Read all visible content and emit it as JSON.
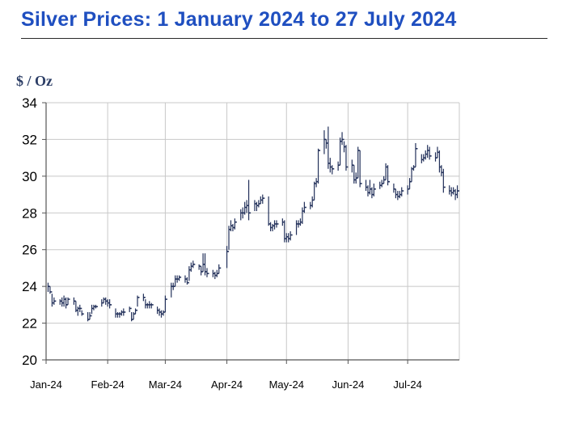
{
  "title": "Silver Prices: 1 January 2024 to 27 July 2024",
  "unit_label": "$ / Oz",
  "colors": {
    "title": "#1f4fc0",
    "bar": "#22305a",
    "grid": "#c8c8c8"
  },
  "chart_data": {
    "type": "ohlc",
    "title": "Silver Prices: 1 January 2024 to 27 July 2024",
    "ylabel": "$ / Oz",
    "xlabel": "",
    "ylim": [
      20,
      34
    ],
    "yticks": [
      20,
      22,
      24,
      26,
      28,
      30,
      32,
      34
    ],
    "xlim": [
      "2024-01-01",
      "2024-07-27"
    ],
    "xticks": [
      {
        "label": "Jan-24",
        "date": "2024-01-01"
      },
      {
        "label": "Feb-24",
        "date": "2024-02-01"
      },
      {
        "label": "Mar-24",
        "date": "2024-03-01"
      },
      {
        "label": "Apr-24",
        "date": "2024-04-01"
      },
      {
        "label": "May-24",
        "date": "2024-05-01"
      },
      {
        "label": "Jun-24",
        "date": "2024-06-01"
      },
      {
        "label": "Jul-24",
        "date": "2024-07-01"
      }
    ],
    "grid": true,
    "legend": "none",
    "fields": [
      "date",
      "high",
      "low",
      "close"
    ],
    "series": [
      {
        "values": [
          [
            "2024-01-02",
            24.2,
            23.7,
            24.0
          ],
          [
            "2024-01-03",
            24.0,
            23.6,
            23.7
          ],
          [
            "2024-01-04",
            23.6,
            22.9,
            23.1
          ],
          [
            "2024-01-05",
            23.4,
            23.0,
            23.2
          ],
          [
            "2024-01-08",
            23.3,
            23.0,
            23.2
          ],
          [
            "2024-01-09",
            23.4,
            22.9,
            23.1
          ],
          [
            "2024-01-10",
            23.5,
            22.9,
            23.3
          ],
          [
            "2024-01-11",
            23.4,
            22.8,
            23.0
          ],
          [
            "2024-01-12",
            23.4,
            23.0,
            23.3
          ],
          [
            "2024-01-15",
            23.4,
            23.0,
            23.2
          ],
          [
            "2024-01-16",
            23.2,
            22.6,
            22.7
          ],
          [
            "2024-01-17",
            22.9,
            22.4,
            22.8
          ],
          [
            "2024-01-18",
            23.0,
            22.6,
            22.8
          ],
          [
            "2024-01-19",
            22.7,
            22.4,
            22.5
          ],
          [
            "2024-01-22",
            22.6,
            22.1,
            22.2
          ],
          [
            "2024-01-23",
            22.6,
            22.2,
            22.4
          ],
          [
            "2024-01-24",
            23.0,
            22.5,
            22.8
          ],
          [
            "2024-01-25",
            23.0,
            22.7,
            22.9
          ],
          [
            "2024-01-26",
            23.0,
            22.8,
            22.9
          ],
          [
            "2024-01-29",
            23.3,
            22.9,
            23.1
          ],
          [
            "2024-01-30",
            23.4,
            23.1,
            23.3
          ],
          [
            "2024-01-31",
            23.4,
            23.0,
            23.2
          ],
          [
            "2024-02-01",
            23.3,
            22.9,
            23.1
          ],
          [
            "2024-02-02",
            23.3,
            22.8,
            23.0
          ],
          [
            "2024-02-05",
            22.8,
            22.3,
            22.5
          ],
          [
            "2024-02-06",
            22.6,
            22.3,
            22.5
          ],
          [
            "2024-02-07",
            22.6,
            22.3,
            22.5
          ],
          [
            "2024-02-08",
            22.7,
            22.4,
            22.6
          ],
          [
            "2024-02-09",
            22.8,
            22.4,
            22.6
          ],
          [
            "2024-02-12",
            22.9,
            22.6,
            22.8
          ],
          [
            "2024-02-13",
            22.6,
            22.1,
            22.2
          ],
          [
            "2024-02-14",
            22.6,
            22.2,
            22.5
          ],
          [
            "2024-02-15",
            22.8,
            22.5,
            22.7
          ],
          [
            "2024-02-16",
            23.5,
            22.9,
            23.4
          ],
          [
            "2024-02-19",
            23.6,
            23.2,
            23.4
          ],
          [
            "2024-02-20",
            23.3,
            22.8,
            23.0
          ],
          [
            "2024-02-21",
            23.1,
            22.8,
            23.0
          ],
          [
            "2024-02-22",
            23.2,
            22.8,
            23.0
          ],
          [
            "2024-02-23",
            23.1,
            22.8,
            23.0
          ],
          [
            "2024-02-26",
            22.9,
            22.5,
            22.7
          ],
          [
            "2024-02-27",
            22.8,
            22.4,
            22.6
          ],
          [
            "2024-02-28",
            22.7,
            22.3,
            22.5
          ],
          [
            "2024-02-29",
            22.7,
            22.4,
            22.6
          ],
          [
            "2024-03-01",
            23.5,
            22.6,
            23.3
          ],
          [
            "2024-03-04",
            24.2,
            23.4,
            24.0
          ],
          [
            "2024-03-05",
            24.2,
            23.8,
            24.0
          ],
          [
            "2024-03-06",
            24.6,
            24.0,
            24.4
          ],
          [
            "2024-03-07",
            24.6,
            24.2,
            24.4
          ],
          [
            "2024-03-08",
            24.6,
            24.3,
            24.5
          ],
          [
            "2024-03-11",
            24.6,
            24.2,
            24.4
          ],
          [
            "2024-03-12",
            24.5,
            24.1,
            24.2
          ],
          [
            "2024-03-13",
            25.1,
            24.3,
            24.9
          ],
          [
            "2024-03-14",
            25.3,
            24.8,
            25.1
          ],
          [
            "2024-03-15",
            25.4,
            25.0,
            25.2
          ],
          [
            "2024-03-18",
            25.2,
            24.9,
            25.1
          ],
          [
            "2024-03-19",
            25.1,
            24.6,
            24.8
          ],
          [
            "2024-03-20",
            25.8,
            24.8,
            25.2
          ],
          [
            "2024-03-21",
            25.8,
            24.6,
            24.8
          ],
          [
            "2024-03-22",
            25.0,
            24.5,
            24.7
          ],
          [
            "2024-03-25",
            24.9,
            24.5,
            24.7
          ],
          [
            "2024-03-26",
            24.8,
            24.4,
            24.6
          ],
          [
            "2024-03-27",
            24.9,
            24.5,
            24.7
          ],
          [
            "2024-03-28",
            25.2,
            24.7,
            25.0
          ],
          [
            "2024-04-01",
            26.2,
            25.0,
            25.9
          ],
          [
            "2024-04-02",
            27.3,
            26.0,
            27.1
          ],
          [
            "2024-04-03",
            27.6,
            27.0,
            27.3
          ],
          [
            "2024-04-04",
            27.4,
            27.0,
            27.2
          ],
          [
            "2024-04-05",
            27.7,
            27.1,
            27.5
          ],
          [
            "2024-04-08",
            28.2,
            27.6,
            28.0
          ],
          [
            "2024-04-09",
            28.3,
            27.7,
            28.0
          ],
          [
            "2024-04-10",
            28.6,
            27.9,
            28.3
          ],
          [
            "2024-04-11",
            28.7,
            28.0,
            28.4
          ],
          [
            "2024-04-12",
            29.8,
            27.6,
            28.0
          ],
          [
            "2024-04-15",
            28.7,
            28.1,
            28.5
          ],
          [
            "2024-04-16",
            28.6,
            28.1,
            28.4
          ],
          [
            "2024-04-17",
            28.7,
            28.3,
            28.5
          ],
          [
            "2024-04-18",
            28.9,
            28.5,
            28.7
          ],
          [
            "2024-04-19",
            29.0,
            28.5,
            28.8
          ],
          [
            "2024-04-22",
            28.9,
            27.3,
            27.4
          ],
          [
            "2024-04-23",
            27.5,
            27.0,
            27.2
          ],
          [
            "2024-04-24",
            27.4,
            27.0,
            27.3
          ],
          [
            "2024-04-25",
            27.6,
            27.1,
            27.4
          ],
          [
            "2024-04-26",
            27.6,
            27.2,
            27.4
          ],
          [
            "2024-04-29",
            27.7,
            27.3,
            27.5
          ],
          [
            "2024-04-30",
            27.6,
            26.4,
            26.6
          ],
          [
            "2024-05-01",
            26.9,
            26.4,
            26.7
          ],
          [
            "2024-05-02",
            26.9,
            26.4,
            26.6
          ],
          [
            "2024-05-03",
            27.0,
            26.5,
            26.8
          ],
          [
            "2024-05-06",
            27.6,
            26.8,
            27.4
          ],
          [
            "2024-05-07",
            27.6,
            27.2,
            27.4
          ],
          [
            "2024-05-08",
            27.7,
            27.3,
            27.5
          ],
          [
            "2024-05-09",
            28.3,
            27.4,
            28.1
          ],
          [
            "2024-05-10",
            28.6,
            28.0,
            28.3
          ],
          [
            "2024-05-13",
            28.6,
            28.2,
            28.4
          ],
          [
            "2024-05-14",
            28.9,
            28.3,
            28.7
          ],
          [
            "2024-05-15",
            29.7,
            28.7,
            29.6
          ],
          [
            "2024-05-16",
            29.9,
            29.4,
            29.7
          ],
          [
            "2024-05-17",
            31.5,
            29.6,
            31.4
          ],
          [
            "2024-05-20",
            32.5,
            31.2,
            32.0
          ],
          [
            "2024-05-21",
            32.0,
            31.5,
            31.8
          ],
          [
            "2024-05-22",
            32.7,
            30.4,
            30.7
          ],
          [
            "2024-05-23",
            31.0,
            30.2,
            30.5
          ],
          [
            "2024-05-24",
            30.6,
            30.1,
            30.4
          ],
          [
            "2024-05-27",
            30.8,
            30.3,
            30.6
          ],
          [
            "2024-05-28",
            32.1,
            30.6,
            31.9
          ],
          [
            "2024-05-29",
            32.4,
            31.7,
            32.0
          ],
          [
            "2024-05-30",
            31.9,
            31.3,
            31.6
          ],
          [
            "2024-05-31",
            31.7,
            30.3,
            30.5
          ],
          [
            "2024-06-03",
            30.9,
            30.2,
            30.6
          ],
          [
            "2024-06-04",
            30.6,
            29.6,
            29.8
          ],
          [
            "2024-06-05",
            30.2,
            29.6,
            29.9
          ],
          [
            "2024-06-06",
            31.6,
            29.9,
            31.4
          ],
          [
            "2024-06-07",
            31.4,
            29.4,
            29.6
          ],
          [
            "2024-06-10",
            29.8,
            29.2,
            29.4
          ],
          [
            "2024-06-11",
            29.5,
            28.9,
            29.1
          ],
          [
            "2024-06-12",
            29.8,
            29.0,
            29.3
          ],
          [
            "2024-06-13",
            29.4,
            28.8,
            29.0
          ],
          [
            "2024-06-14",
            29.6,
            28.9,
            29.3
          ],
          [
            "2024-06-17",
            29.7,
            29.3,
            29.5
          ],
          [
            "2024-06-18",
            29.8,
            29.4,
            29.6
          ],
          [
            "2024-06-19",
            30.0,
            29.6,
            29.8
          ],
          [
            "2024-06-20",
            30.7,
            29.8,
            30.5
          ],
          [
            "2024-06-21",
            30.6,
            29.5,
            29.7
          ],
          [
            "2024-06-24",
            29.6,
            29.1,
            29.3
          ],
          [
            "2024-06-25",
            29.3,
            28.8,
            29.0
          ],
          [
            "2024-06-26",
            29.2,
            28.7,
            28.9
          ],
          [
            "2024-06-27",
            29.2,
            28.8,
            29.0
          ],
          [
            "2024-06-28",
            29.4,
            28.9,
            29.2
          ],
          [
            "2024-07-01",
            29.5,
            29.0,
            29.3
          ],
          [
            "2024-07-02",
            29.9,
            29.3,
            29.7
          ],
          [
            "2024-07-03",
            30.5,
            29.7,
            30.4
          ],
          [
            "2024-07-04",
            30.6,
            30.3,
            30.5
          ],
          [
            "2024-07-05",
            31.8,
            30.5,
            31.5
          ],
          [
            "2024-07-08",
            31.2,
            30.7,
            30.9
          ],
          [
            "2024-07-09",
            31.2,
            30.8,
            31.0
          ],
          [
            "2024-07-10",
            31.4,
            30.9,
            31.2
          ],
          [
            "2024-07-11",
            31.7,
            31.0,
            31.4
          ],
          [
            "2024-07-12",
            31.6,
            30.9,
            31.1
          ],
          [
            "2024-07-15",
            31.3,
            30.8,
            31.0
          ],
          [
            "2024-07-16",
            31.6,
            31.0,
            31.3
          ],
          [
            "2024-07-17",
            31.4,
            30.2,
            30.5
          ],
          [
            "2024-07-18",
            30.6,
            30.0,
            30.2
          ],
          [
            "2024-07-19",
            30.4,
            29.1,
            29.4
          ],
          [
            "2024-07-22",
            29.5,
            29.0,
            29.2
          ],
          [
            "2024-07-23",
            29.4,
            28.9,
            29.1
          ],
          [
            "2024-07-24",
            29.4,
            29.0,
            29.2
          ],
          [
            "2024-07-25",
            29.3,
            28.7,
            29.0
          ],
          [
            "2024-07-26",
            29.5,
            28.8,
            29.2
          ]
        ]
      }
    ]
  }
}
